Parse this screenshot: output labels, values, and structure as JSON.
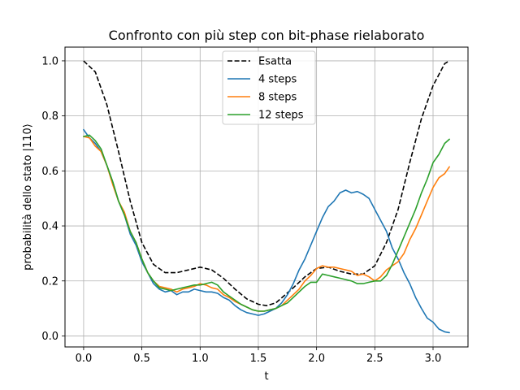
{
  "chart_data": {
    "type": "line",
    "title": "Confronto con più step con bit-phase rielaborato",
    "xlabel": "t",
    "ylabel": "probabilità dello stato |110⟩",
    "xlim": [
      -0.16,
      3.3
    ],
    "ylim": [
      -0.04,
      1.05
    ],
    "xticks": [
      0.0,
      0.5,
      1.0,
      1.5,
      2.0,
      2.5,
      3.0
    ],
    "xtick_labels": [
      "0.0",
      "0.5",
      "1.0",
      "1.5",
      "2.0",
      "2.5",
      "3.0"
    ],
    "yticks": [
      0.0,
      0.2,
      0.4,
      0.6,
      0.8,
      1.0
    ],
    "ytick_labels": [
      "0.0",
      "0.2",
      "0.4",
      "0.6",
      "0.8",
      "1.0"
    ],
    "grid": true,
    "legend_position": "top-center",
    "series": [
      {
        "name": "Esatta",
        "color": "#000000",
        "dashed": true,
        "x": [
          0.0,
          0.1,
          0.2,
          0.3,
          0.4,
          0.5,
          0.6,
          0.7,
          0.8,
          0.9,
          1.0,
          1.1,
          1.2,
          1.3,
          1.4,
          1.5,
          1.57,
          1.65,
          1.8,
          1.9,
          2.0,
          2.1,
          2.2,
          2.3,
          2.4,
          2.5,
          2.6,
          2.7,
          2.8,
          2.9,
          3.0,
          3.1,
          3.14
        ],
        "y": [
          1.0,
          0.96,
          0.84,
          0.67,
          0.49,
          0.34,
          0.26,
          0.23,
          0.23,
          0.24,
          0.25,
          0.24,
          0.21,
          0.17,
          0.135,
          0.115,
          0.11,
          0.12,
          0.175,
          0.215,
          0.245,
          0.25,
          0.235,
          0.225,
          0.225,
          0.255,
          0.34,
          0.46,
          0.63,
          0.79,
          0.91,
          0.99,
          1.0
        ]
      },
      {
        "name": "4 steps",
        "color": "#1f77b4",
        "dashed": false,
        "x": [
          0.0,
          0.05,
          0.1,
          0.15,
          0.2,
          0.25,
          0.3,
          0.35,
          0.4,
          0.45,
          0.5,
          0.55,
          0.6,
          0.65,
          0.7,
          0.75,
          0.8,
          0.85,
          0.9,
          0.95,
          1.0,
          1.05,
          1.1,
          1.15,
          1.2,
          1.25,
          1.3,
          1.35,
          1.4,
          1.45,
          1.5,
          1.55,
          1.6,
          1.65,
          1.7,
          1.75,
          1.8,
          1.85,
          1.9,
          1.95,
          2.0,
          2.05,
          2.1,
          2.15,
          2.2,
          2.25,
          2.3,
          2.35,
          2.4,
          2.45,
          2.5,
          2.55,
          2.6,
          2.65,
          2.7,
          2.75,
          2.8,
          2.85,
          2.9,
          2.95,
          3.0,
          3.05,
          3.1,
          3.14
        ],
        "y": [
          0.75,
          0.72,
          0.7,
          0.67,
          0.62,
          0.56,
          0.49,
          0.44,
          0.37,
          0.33,
          0.27,
          0.23,
          0.19,
          0.17,
          0.16,
          0.165,
          0.15,
          0.16,
          0.16,
          0.17,
          0.165,
          0.16,
          0.16,
          0.155,
          0.14,
          0.13,
          0.11,
          0.095,
          0.085,
          0.08,
          0.075,
          0.08,
          0.09,
          0.1,
          0.12,
          0.15,
          0.19,
          0.24,
          0.28,
          0.33,
          0.38,
          0.43,
          0.47,
          0.49,
          0.52,
          0.53,
          0.52,
          0.525,
          0.515,
          0.5,
          0.46,
          0.42,
          0.38,
          0.32,
          0.28,
          0.23,
          0.19,
          0.14,
          0.1,
          0.065,
          0.05,
          0.025,
          0.015,
          0.012
        ]
      },
      {
        "name": "8 steps",
        "color": "#ff7f0e",
        "dashed": false,
        "x": [
          0.0,
          0.05,
          0.1,
          0.15,
          0.2,
          0.25,
          0.3,
          0.35,
          0.4,
          0.45,
          0.5,
          0.55,
          0.6,
          0.65,
          0.7,
          0.75,
          0.8,
          0.85,
          0.9,
          0.95,
          1.0,
          1.05,
          1.1,
          1.15,
          1.2,
          1.25,
          1.3,
          1.35,
          1.4,
          1.45,
          1.5,
          1.55,
          1.6,
          1.65,
          1.7,
          1.75,
          1.8,
          1.85,
          1.9,
          1.95,
          2.0,
          2.05,
          2.1,
          2.15,
          2.2,
          2.25,
          2.3,
          2.35,
          2.4,
          2.45,
          2.5,
          2.55,
          2.6,
          2.65,
          2.7,
          2.75,
          2.8,
          2.85,
          2.9,
          2.95,
          3.0,
          3.05,
          3.1,
          3.14
        ],
        "y": [
          0.725,
          0.72,
          0.69,
          0.67,
          0.62,
          0.55,
          0.49,
          0.45,
          0.38,
          0.34,
          0.28,
          0.23,
          0.2,
          0.18,
          0.175,
          0.17,
          0.16,
          0.17,
          0.175,
          0.18,
          0.19,
          0.185,
          0.175,
          0.17,
          0.15,
          0.14,
          0.125,
          0.115,
          0.105,
          0.095,
          0.09,
          0.09,
          0.095,
          0.1,
          0.11,
          0.13,
          0.15,
          0.17,
          0.2,
          0.22,
          0.245,
          0.255,
          0.25,
          0.25,
          0.245,
          0.24,
          0.235,
          0.22,
          0.225,
          0.215,
          0.2,
          0.215,
          0.24,
          0.255,
          0.27,
          0.3,
          0.35,
          0.39,
          0.44,
          0.49,
          0.54,
          0.575,
          0.59,
          0.615
        ]
      },
      {
        "name": "12 steps",
        "color": "#2ca02c",
        "dashed": false,
        "x": [
          0.0,
          0.05,
          0.1,
          0.15,
          0.2,
          0.25,
          0.3,
          0.35,
          0.4,
          0.45,
          0.5,
          0.55,
          0.6,
          0.65,
          0.7,
          0.75,
          0.8,
          0.85,
          0.9,
          0.95,
          1.0,
          1.05,
          1.1,
          1.15,
          1.2,
          1.25,
          1.3,
          1.35,
          1.4,
          1.45,
          1.5,
          1.55,
          1.6,
          1.65,
          1.7,
          1.75,
          1.8,
          1.85,
          1.9,
          1.95,
          2.0,
          2.05,
          2.1,
          2.15,
          2.2,
          2.25,
          2.3,
          2.35,
          2.4,
          2.45,
          2.5,
          2.55,
          2.6,
          2.65,
          2.7,
          2.75,
          2.8,
          2.85,
          2.9,
          2.95,
          3.0,
          3.05,
          3.1,
          3.14
        ],
        "y": [
          0.725,
          0.73,
          0.71,
          0.68,
          0.62,
          0.56,
          0.49,
          0.44,
          0.38,
          0.34,
          0.28,
          0.23,
          0.2,
          0.175,
          0.17,
          0.165,
          0.17,
          0.175,
          0.18,
          0.185,
          0.185,
          0.19,
          0.195,
          0.185,
          0.16,
          0.145,
          0.13,
          0.115,
          0.105,
          0.095,
          0.09,
          0.09,
          0.095,
          0.1,
          0.11,
          0.12,
          0.14,
          0.16,
          0.18,
          0.195,
          0.195,
          0.225,
          0.22,
          0.215,
          0.21,
          0.205,
          0.2,
          0.19,
          0.19,
          0.195,
          0.2,
          0.2,
          0.22,
          0.26,
          0.31,
          0.36,
          0.41,
          0.46,
          0.52,
          0.57,
          0.63,
          0.66,
          0.7,
          0.715
        ]
      }
    ]
  }
}
